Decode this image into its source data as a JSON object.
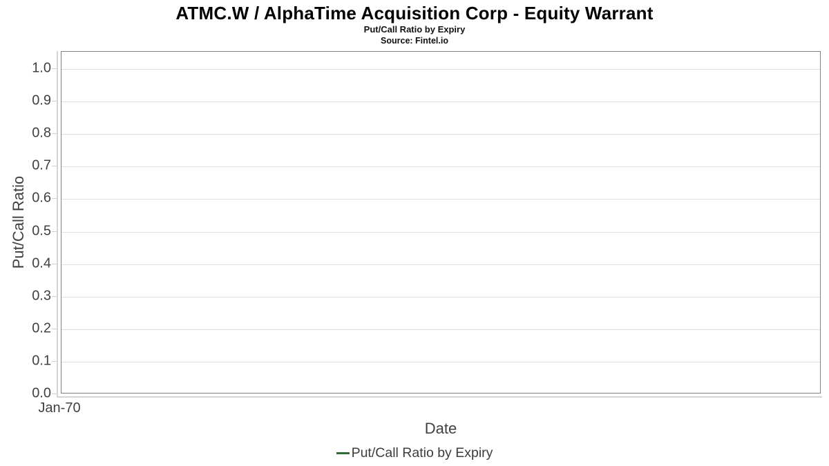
{
  "header": {
    "title": "ATMC.W / AlphaTime Acquisition Corp - Equity Warrant",
    "subtitle": "Put/Call Ratio by Expiry",
    "source": "Source: Fintel.io"
  },
  "chart_data": {
    "type": "line",
    "title": "ATMC.W / AlphaTime Acquisition Corp - Equity Warrant",
    "subtitle": "Put/Call Ratio by Expiry",
    "source": "Source: Fintel.io",
    "xlabel": "Date",
    "ylabel": "Put/Call Ratio",
    "ylim": [
      0.0,
      1.053
    ],
    "y_ticks": [
      "0.0",
      "0.1",
      "0.2",
      "0.3",
      "0.4",
      "0.5",
      "0.6",
      "0.7",
      "0.8",
      "0.9",
      "1.0"
    ],
    "x_ticks": [
      "Jan-70"
    ],
    "grid": "horizontal-only",
    "legend_position": "bottom-center",
    "series": [
      {
        "name": "Put/Call Ratio by Expiry",
        "color": "#2e6b38",
        "x": [],
        "values": []
      }
    ]
  },
  "colors": {
    "series_green": "#2e6b38",
    "plot_border": "#808080",
    "gridline": "#e0e0e0",
    "axis_line": "#d4d4d4",
    "axis_text": "#404040",
    "title_text": "#000000",
    "background": "#ffffff"
  }
}
